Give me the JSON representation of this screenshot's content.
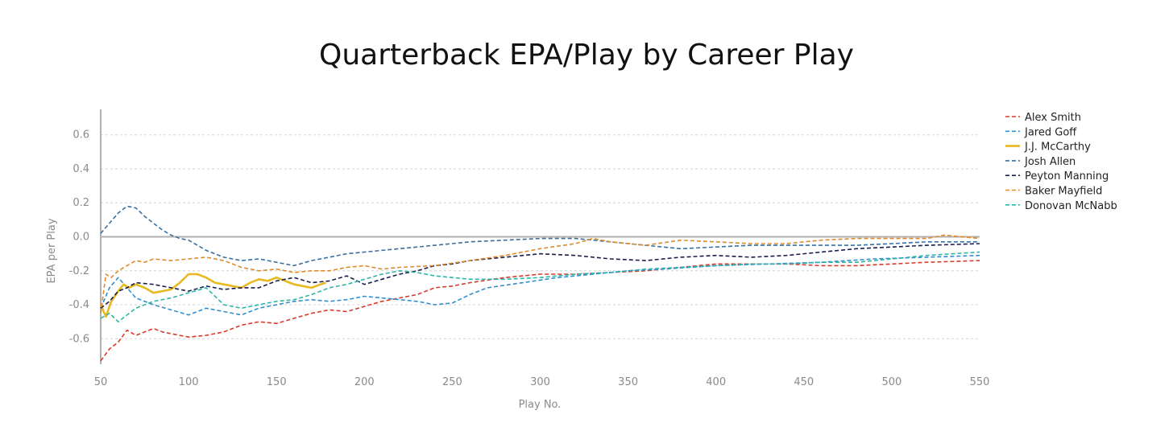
{
  "chart_data": {
    "type": "line",
    "title": "Quarterback EPA/Play by Career Play",
    "xlabel": "Play No.",
    "ylabel": "EPA per Play",
    "xlim": [
      50,
      550
    ],
    "ylim": [
      -0.75,
      0.75
    ],
    "x_ticks": [
      50,
      100,
      150,
      200,
      250,
      300,
      350,
      400,
      450,
      500,
      550
    ],
    "y_ticks": [
      -0.6,
      -0.4,
      -0.2,
      0.0,
      0.2,
      0.4,
      0.6
    ],
    "y_tick_labels": [
      "-0.6",
      "-0.4",
      "-0.2",
      "0.0",
      "0.2",
      "0.4",
      "0.6"
    ],
    "grid": "horizontal-dashed",
    "legend_position": "top-right",
    "series": [
      {
        "name": "Alex Smith",
        "color": "#d93a2b",
        "style": "dashed",
        "x": [
          50,
          55,
          60,
          65,
          70,
          75,
          80,
          85,
          90,
          95,
          100,
          110,
          120,
          130,
          140,
          150,
          160,
          170,
          180,
          190,
          200,
          210,
          220,
          230,
          240,
          250,
          260,
          280,
          300,
          320,
          340,
          360,
          380,
          400,
          420,
          440,
          460,
          480,
          500,
          520,
          550
        ],
        "y": [
          -0.73,
          -0.66,
          -0.62,
          -0.55,
          -0.58,
          -0.56,
          -0.54,
          -0.56,
          -0.57,
          -0.58,
          -0.59,
          -0.58,
          -0.56,
          -0.52,
          -0.5,
          -0.51,
          -0.48,
          -0.45,
          -0.43,
          -0.44,
          -0.41,
          -0.38,
          -0.36,
          -0.34,
          -0.3,
          -0.29,
          -0.27,
          -0.24,
          -0.22,
          -0.22,
          -0.21,
          -0.2,
          -0.18,
          -0.16,
          -0.16,
          -0.16,
          -0.17,
          -0.17,
          -0.16,
          -0.15,
          -0.14
        ]
      },
      {
        "name": "Jared Goff",
        "color": "#2f8fcf",
        "style": "dashed",
        "x": [
          50,
          55,
          60,
          65,
          70,
          80,
          90,
          100,
          110,
          120,
          130,
          140,
          150,
          160,
          170,
          180,
          190,
          200,
          210,
          220,
          230,
          240,
          250,
          260,
          270,
          290,
          310,
          330,
          350,
          370,
          400,
          430,
          460,
          490,
          520,
          550
        ],
        "y": [
          -0.42,
          -0.3,
          -0.24,
          -0.3,
          -0.36,
          -0.4,
          -0.43,
          -0.46,
          -0.42,
          -0.44,
          -0.46,
          -0.42,
          -0.4,
          -0.38,
          -0.37,
          -0.38,
          -0.37,
          -0.35,
          -0.36,
          -0.37,
          -0.38,
          -0.4,
          -0.39,
          -0.34,
          -0.3,
          -0.27,
          -0.24,
          -0.22,
          -0.2,
          -0.19,
          -0.17,
          -0.16,
          -0.15,
          -0.13,
          -0.12,
          -0.11
        ]
      },
      {
        "name": "J.J. McCarthy",
        "color": "#e8b920",
        "style": "solid",
        "x": [
          50,
          53,
          56,
          60,
          63,
          66,
          70,
          75,
          80,
          85,
          90,
          95,
          100,
          105,
          110,
          115,
          120,
          125,
          130,
          135,
          140,
          145,
          150,
          155,
          160,
          165,
          170,
          175,
          178
        ],
        "y": [
          -0.4,
          -0.47,
          -0.38,
          -0.32,
          -0.28,
          -0.3,
          -0.28,
          -0.3,
          -0.33,
          -0.32,
          -0.31,
          -0.27,
          -0.22,
          -0.22,
          -0.24,
          -0.27,
          -0.28,
          -0.29,
          -0.3,
          -0.27,
          -0.25,
          -0.26,
          -0.24,
          -0.26,
          -0.28,
          -0.29,
          -0.3,
          -0.28,
          -0.27
        ]
      },
      {
        "name": "Josh Allen",
        "color": "#3a6fa0",
        "style": "dashed",
        "x": [
          50,
          55,
          60,
          65,
          70,
          75,
          80,
          85,
          90,
          95,
          100,
          110,
          120,
          130,
          140,
          150,
          160,
          170,
          180,
          190,
          200,
          220,
          240,
          260,
          280,
          300,
          320,
          340,
          360,
          380,
          400,
          420,
          440,
          460,
          480,
          500,
          520,
          550
        ],
        "y": [
          0.02,
          0.08,
          0.14,
          0.18,
          0.17,
          0.12,
          0.08,
          0.04,
          0.01,
          -0.01,
          -0.02,
          -0.08,
          -0.12,
          -0.14,
          -0.13,
          -0.15,
          -0.17,
          -0.14,
          -0.12,
          -0.1,
          -0.09,
          -0.07,
          -0.05,
          -0.03,
          -0.02,
          -0.01,
          -0.01,
          -0.03,
          -0.05,
          -0.07,
          -0.06,
          -0.05,
          -0.05,
          -0.05,
          -0.05,
          -0.04,
          -0.03,
          -0.03
        ]
      },
      {
        "name": "Peyton Manning",
        "color": "#1a1f4f",
        "style": "dashed",
        "x": [
          50,
          55,
          60,
          65,
          70,
          80,
          90,
          100,
          110,
          120,
          130,
          140,
          150,
          160,
          170,
          180,
          190,
          200,
          210,
          220,
          230,
          240,
          250,
          260,
          280,
          300,
          320,
          340,
          360,
          380,
          400,
          420,
          440,
          460,
          480,
          500,
          520,
          550
        ],
        "y": [
          -0.42,
          -0.38,
          -0.32,
          -0.3,
          -0.27,
          -0.28,
          -0.3,
          -0.32,
          -0.29,
          -0.31,
          -0.3,
          -0.3,
          -0.26,
          -0.24,
          -0.27,
          -0.26,
          -0.23,
          -0.28,
          -0.25,
          -0.22,
          -0.2,
          -0.17,
          -0.16,
          -0.14,
          -0.12,
          -0.1,
          -0.11,
          -0.13,
          -0.14,
          -0.12,
          -0.11,
          -0.12,
          -0.11,
          -0.09,
          -0.07,
          -0.06,
          -0.05,
          -0.04
        ]
      },
      {
        "name": "Baker Mayfield",
        "color": "#e08a2a",
        "style": "dashed",
        "x": [
          50,
          53,
          56,
          60,
          65,
          70,
          75,
          80,
          90,
          100,
          110,
          120,
          130,
          140,
          150,
          160,
          170,
          180,
          190,
          200,
          210,
          220,
          240,
          260,
          280,
          300,
          320,
          330,
          340,
          360,
          380,
          400,
          420,
          440,
          460,
          480,
          500,
          520,
          530,
          550
        ],
        "y": [
          -0.45,
          -0.22,
          -0.24,
          -0.2,
          -0.17,
          -0.14,
          -0.15,
          -0.13,
          -0.14,
          -0.13,
          -0.12,
          -0.14,
          -0.18,
          -0.2,
          -0.19,
          -0.21,
          -0.2,
          -0.2,
          -0.18,
          -0.17,
          -0.19,
          -0.18,
          -0.17,
          -0.14,
          -0.11,
          -0.07,
          -0.04,
          -0.01,
          -0.03,
          -0.05,
          -0.02,
          -0.03,
          -0.04,
          -0.04,
          -0.02,
          -0.01,
          -0.01,
          -0.01,
          0.01,
          -0.01
        ]
      },
      {
        "name": "Donovan McNabb",
        "color": "#2eb5a8",
        "style": "dashed",
        "x": [
          50,
          55,
          60,
          65,
          70,
          80,
          90,
          100,
          110,
          120,
          130,
          140,
          150,
          160,
          170,
          180,
          190,
          200,
          210,
          220,
          230,
          240,
          250,
          260,
          280,
          300,
          320,
          340,
          360,
          380,
          400,
          420,
          440,
          460,
          480,
          500,
          520,
          550
        ],
        "y": [
          -0.48,
          -0.45,
          -0.5,
          -0.46,
          -0.42,
          -0.38,
          -0.36,
          -0.33,
          -0.3,
          -0.4,
          -0.42,
          -0.4,
          -0.38,
          -0.37,
          -0.34,
          -0.3,
          -0.28,
          -0.25,
          -0.22,
          -0.2,
          -0.21,
          -0.23,
          -0.24,
          -0.25,
          -0.25,
          -0.24,
          -0.22,
          -0.21,
          -0.19,
          -0.18,
          -0.17,
          -0.16,
          -0.16,
          -0.15,
          -0.15,
          -0.13,
          -0.11,
          -0.09
        ]
      }
    ]
  }
}
